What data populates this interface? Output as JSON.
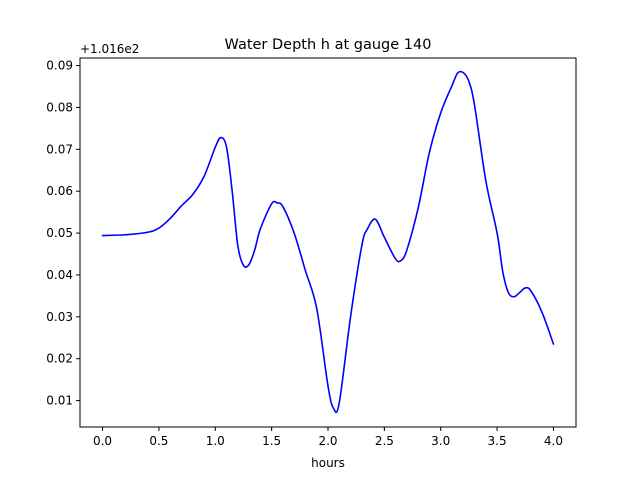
{
  "chart_data": {
    "type": "line",
    "title": "Water Depth h at gauge 140",
    "xlabel": "hours",
    "ylabel": "",
    "y_offset_label": "+1.016e2",
    "xlim": [
      -0.2,
      4.2
    ],
    "ylim": [
      0.0037,
      0.0918
    ],
    "x_ticks": [
      0.0,
      0.5,
      1.0,
      1.5,
      2.0,
      2.5,
      3.0,
      3.5,
      4.0
    ],
    "x_tick_labels": [
      "0.0",
      "0.5",
      "1.0",
      "1.5",
      "2.0",
      "2.5",
      "3.0",
      "3.5",
      "4.0"
    ],
    "y_ticks": [
      0.01,
      0.02,
      0.03,
      0.04,
      0.05,
      0.06,
      0.07,
      0.08,
      0.09
    ],
    "y_tick_labels": [
      "0.01",
      "0.02",
      "0.03",
      "0.04",
      "0.05",
      "0.06",
      "0.07",
      "0.08",
      "0.09"
    ],
    "grid": false,
    "series": [
      {
        "color": "#0000ff",
        "x": [
          0.0,
          0.2,
          0.4,
          0.5,
          0.6,
          0.7,
          0.8,
          0.9,
          1.0,
          1.05,
          1.1,
          1.15,
          1.2,
          1.25,
          1.3,
          1.35,
          1.4,
          1.5,
          1.55,
          1.6,
          1.7,
          1.8,
          1.9,
          2.0,
          2.05,
          2.1,
          2.2,
          2.3,
          2.35,
          2.42,
          2.5,
          2.6,
          2.65,
          2.7,
          2.8,
          2.9,
          3.0,
          3.1,
          3.15,
          3.2,
          3.25,
          3.3,
          3.4,
          3.5,
          3.55,
          3.6,
          3.65,
          3.7,
          3.75,
          3.8,
          3.9,
          4.0
        ],
        "y": [
          0.0494,
          0.0496,
          0.0502,
          0.0512,
          0.0535,
          0.0565,
          0.0592,
          0.0635,
          0.0705,
          0.0728,
          0.0705,
          0.06,
          0.047,
          0.0423,
          0.0425,
          0.046,
          0.051,
          0.057,
          0.0572,
          0.0563,
          0.05,
          0.041,
          0.032,
          0.0135,
          0.0081,
          0.0095,
          0.03,
          0.047,
          0.051,
          0.0533,
          0.049,
          0.0438,
          0.0435,
          0.046,
          0.056,
          0.0693,
          0.0787,
          0.0852,
          0.0882,
          0.0883,
          0.0862,
          0.0805,
          0.0625,
          0.05,
          0.0408,
          0.0358,
          0.0348,
          0.0358,
          0.0369,
          0.0362,
          0.031,
          0.0235
        ]
      }
    ]
  }
}
